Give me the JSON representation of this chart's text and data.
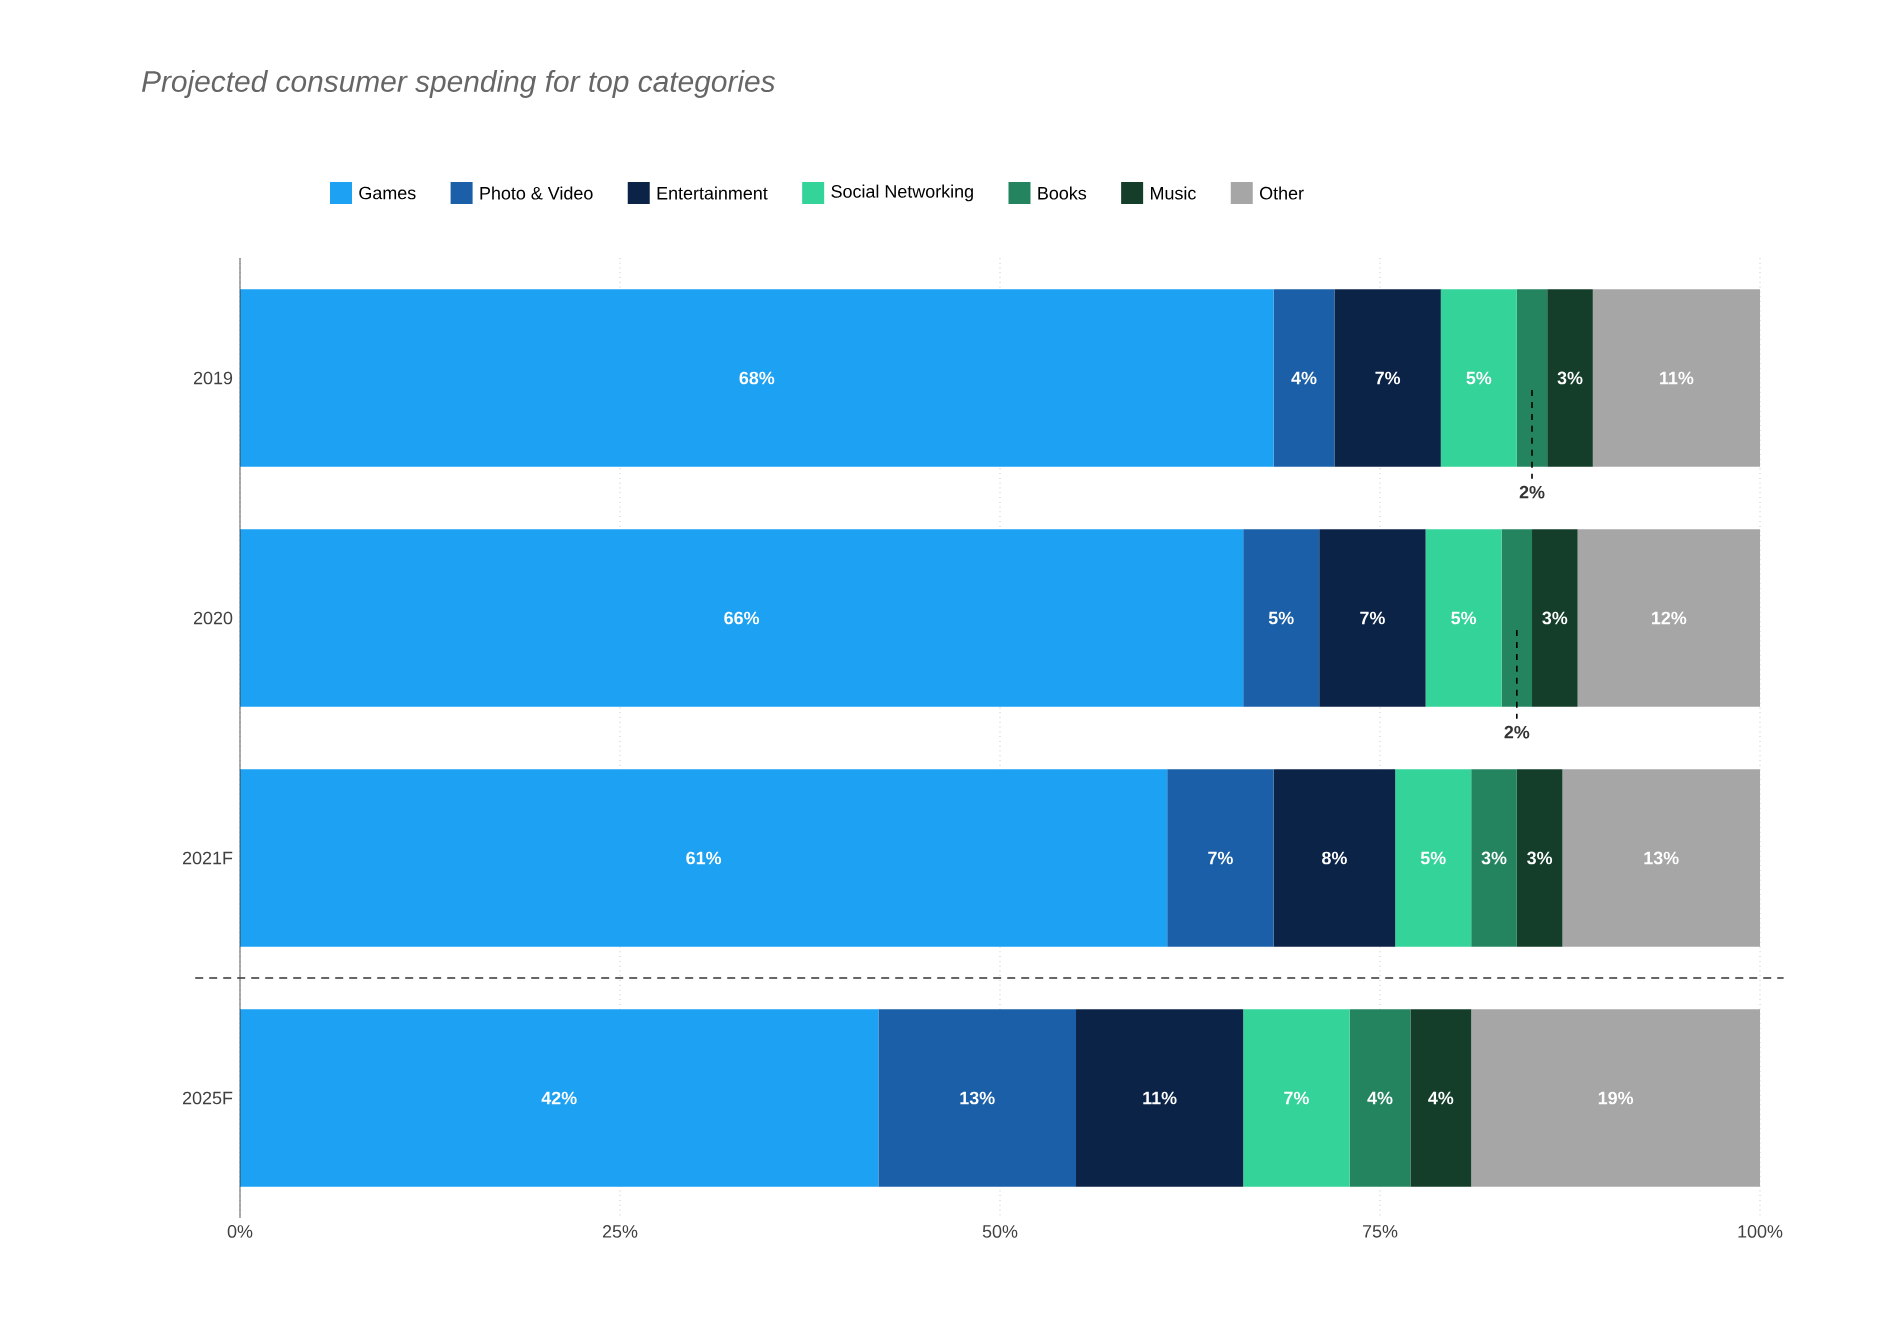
{
  "chart_data": {
    "type": "bar",
    "orientation": "horizontal",
    "stacked": true,
    "title": "Projected consumer spending for top categories",
    "categories": [
      "2019",
      "2020",
      "2021F",
      "2025F"
    ],
    "series": [
      {
        "name": "Games",
        "color": "#1da1f2",
        "values": [
          68,
          66,
          61,
          42
        ],
        "value_labels": [
          "68%",
          "66%",
          "61%",
          "42%"
        ]
      },
      {
        "name": "Photo & Video",
        "color": "#1a5fa8",
        "values": [
          4,
          5,
          7,
          13
        ],
        "value_labels": [
          "4%",
          "5%",
          "7%",
          "13%"
        ]
      },
      {
        "name": "Entertainment",
        "color": "#0b2347",
        "values": [
          7,
          7,
          8,
          11
        ],
        "value_labels": [
          "7%",
          "7%",
          "8%",
          "11%"
        ]
      },
      {
        "name": "Social Networking",
        "color": "#34d399",
        "values": [
          5,
          5,
          5,
          7
        ],
        "value_labels": [
          "5%",
          "5%",
          "5%",
          "7%"
        ]
      },
      {
        "name": "Books",
        "color": "#23845f",
        "values": [
          2,
          2,
          3,
          4
        ],
        "value_labels": [
          "2%",
          "2%",
          "3%",
          "4%"
        ]
      },
      {
        "name": "Music",
        "color": "#143d2a",
        "values": [
          3,
          3,
          3,
          4
        ],
        "value_labels": [
          "3%",
          "3%",
          "3%",
          "4%"
        ]
      },
      {
        "name": "Other",
        "color": "#a6a6a6",
        "values": [
          11,
          12,
          13,
          19
        ],
        "value_labels": [
          "11%",
          "12%",
          "13%",
          "19%"
        ]
      }
    ],
    "xlim": [
      0,
      100
    ],
    "xticks": [
      {
        "value": 0,
        "label": "0%"
      },
      {
        "value": 25,
        "label": "25%"
      },
      {
        "value": 50,
        "label": "50%"
      },
      {
        "value": 75,
        "label": "75%"
      },
      {
        "value": 100,
        "label": "100%"
      }
    ],
    "grid": "x",
    "legend": "top"
  }
}
